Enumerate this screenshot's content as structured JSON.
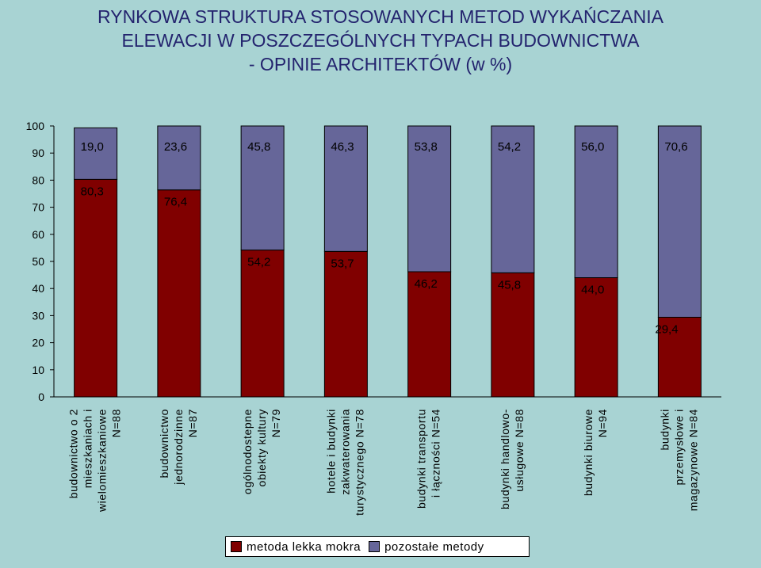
{
  "chart_data": {
    "type": "bar",
    "stacked": true,
    "title": [
      "RYNKOWA STRUKTURA STOSOWANYCH METOD WYKAŃCZANIA",
      "ELEWACJI W POSZCZEGÓLNYCH TYPACH BUDOWNICTWA",
      "- OPINIE ARCHITEKTÓW (w %)"
    ],
    "categories": [
      [
        "budownictwo o 2",
        "mieszkaniach i",
        "wielomieszkaniowe",
        "N=88"
      ],
      [
        "budownictwo",
        "jednorodzinne",
        "N=87"
      ],
      [
        "ogólnodostepne",
        "obiekty kultury",
        "N=79"
      ],
      [
        "hotele i budynki",
        "zakwaterowania",
        "turystycznego N=78"
      ],
      [
        "budynki transportu",
        "i łączności N=54"
      ],
      [
        "budynki handlowo-",
        "usługowe N=88"
      ],
      [
        "budynki biurowe",
        "N=94"
      ],
      [
        "budynki",
        "przemysłowe i",
        "magazynowe N=84"
      ]
    ],
    "series": [
      {
        "name": "metoda lekka mokra",
        "color": "#800000",
        "values": [
          80.3,
          76.4,
          54.2,
          53.7,
          46.2,
          45.8,
          44.0,
          29.4
        ],
        "labels": [
          "80,3",
          "76,4",
          "54,2",
          "53,7",
          "46,2",
          "45,8",
          "44,0",
          "29,4"
        ]
      },
      {
        "name": "pozostałe metody",
        "color": "#666699",
        "values": [
          19.0,
          23.6,
          45.8,
          46.3,
          53.8,
          54.2,
          56.0,
          70.6
        ],
        "labels": [
          "19,0",
          "23,6",
          "45,8",
          "46,3",
          "53,8",
          "54,2",
          "56,0",
          "70,6"
        ]
      }
    ],
    "ylim": [
      0,
      100
    ],
    "yticks": [
      "0",
      "10",
      "20",
      "30",
      "40",
      "50",
      "60",
      "70",
      "80",
      "90",
      "100"
    ],
    "plot_background": "#a8d3d3",
    "grid": false,
    "legend_position": "bottom"
  }
}
